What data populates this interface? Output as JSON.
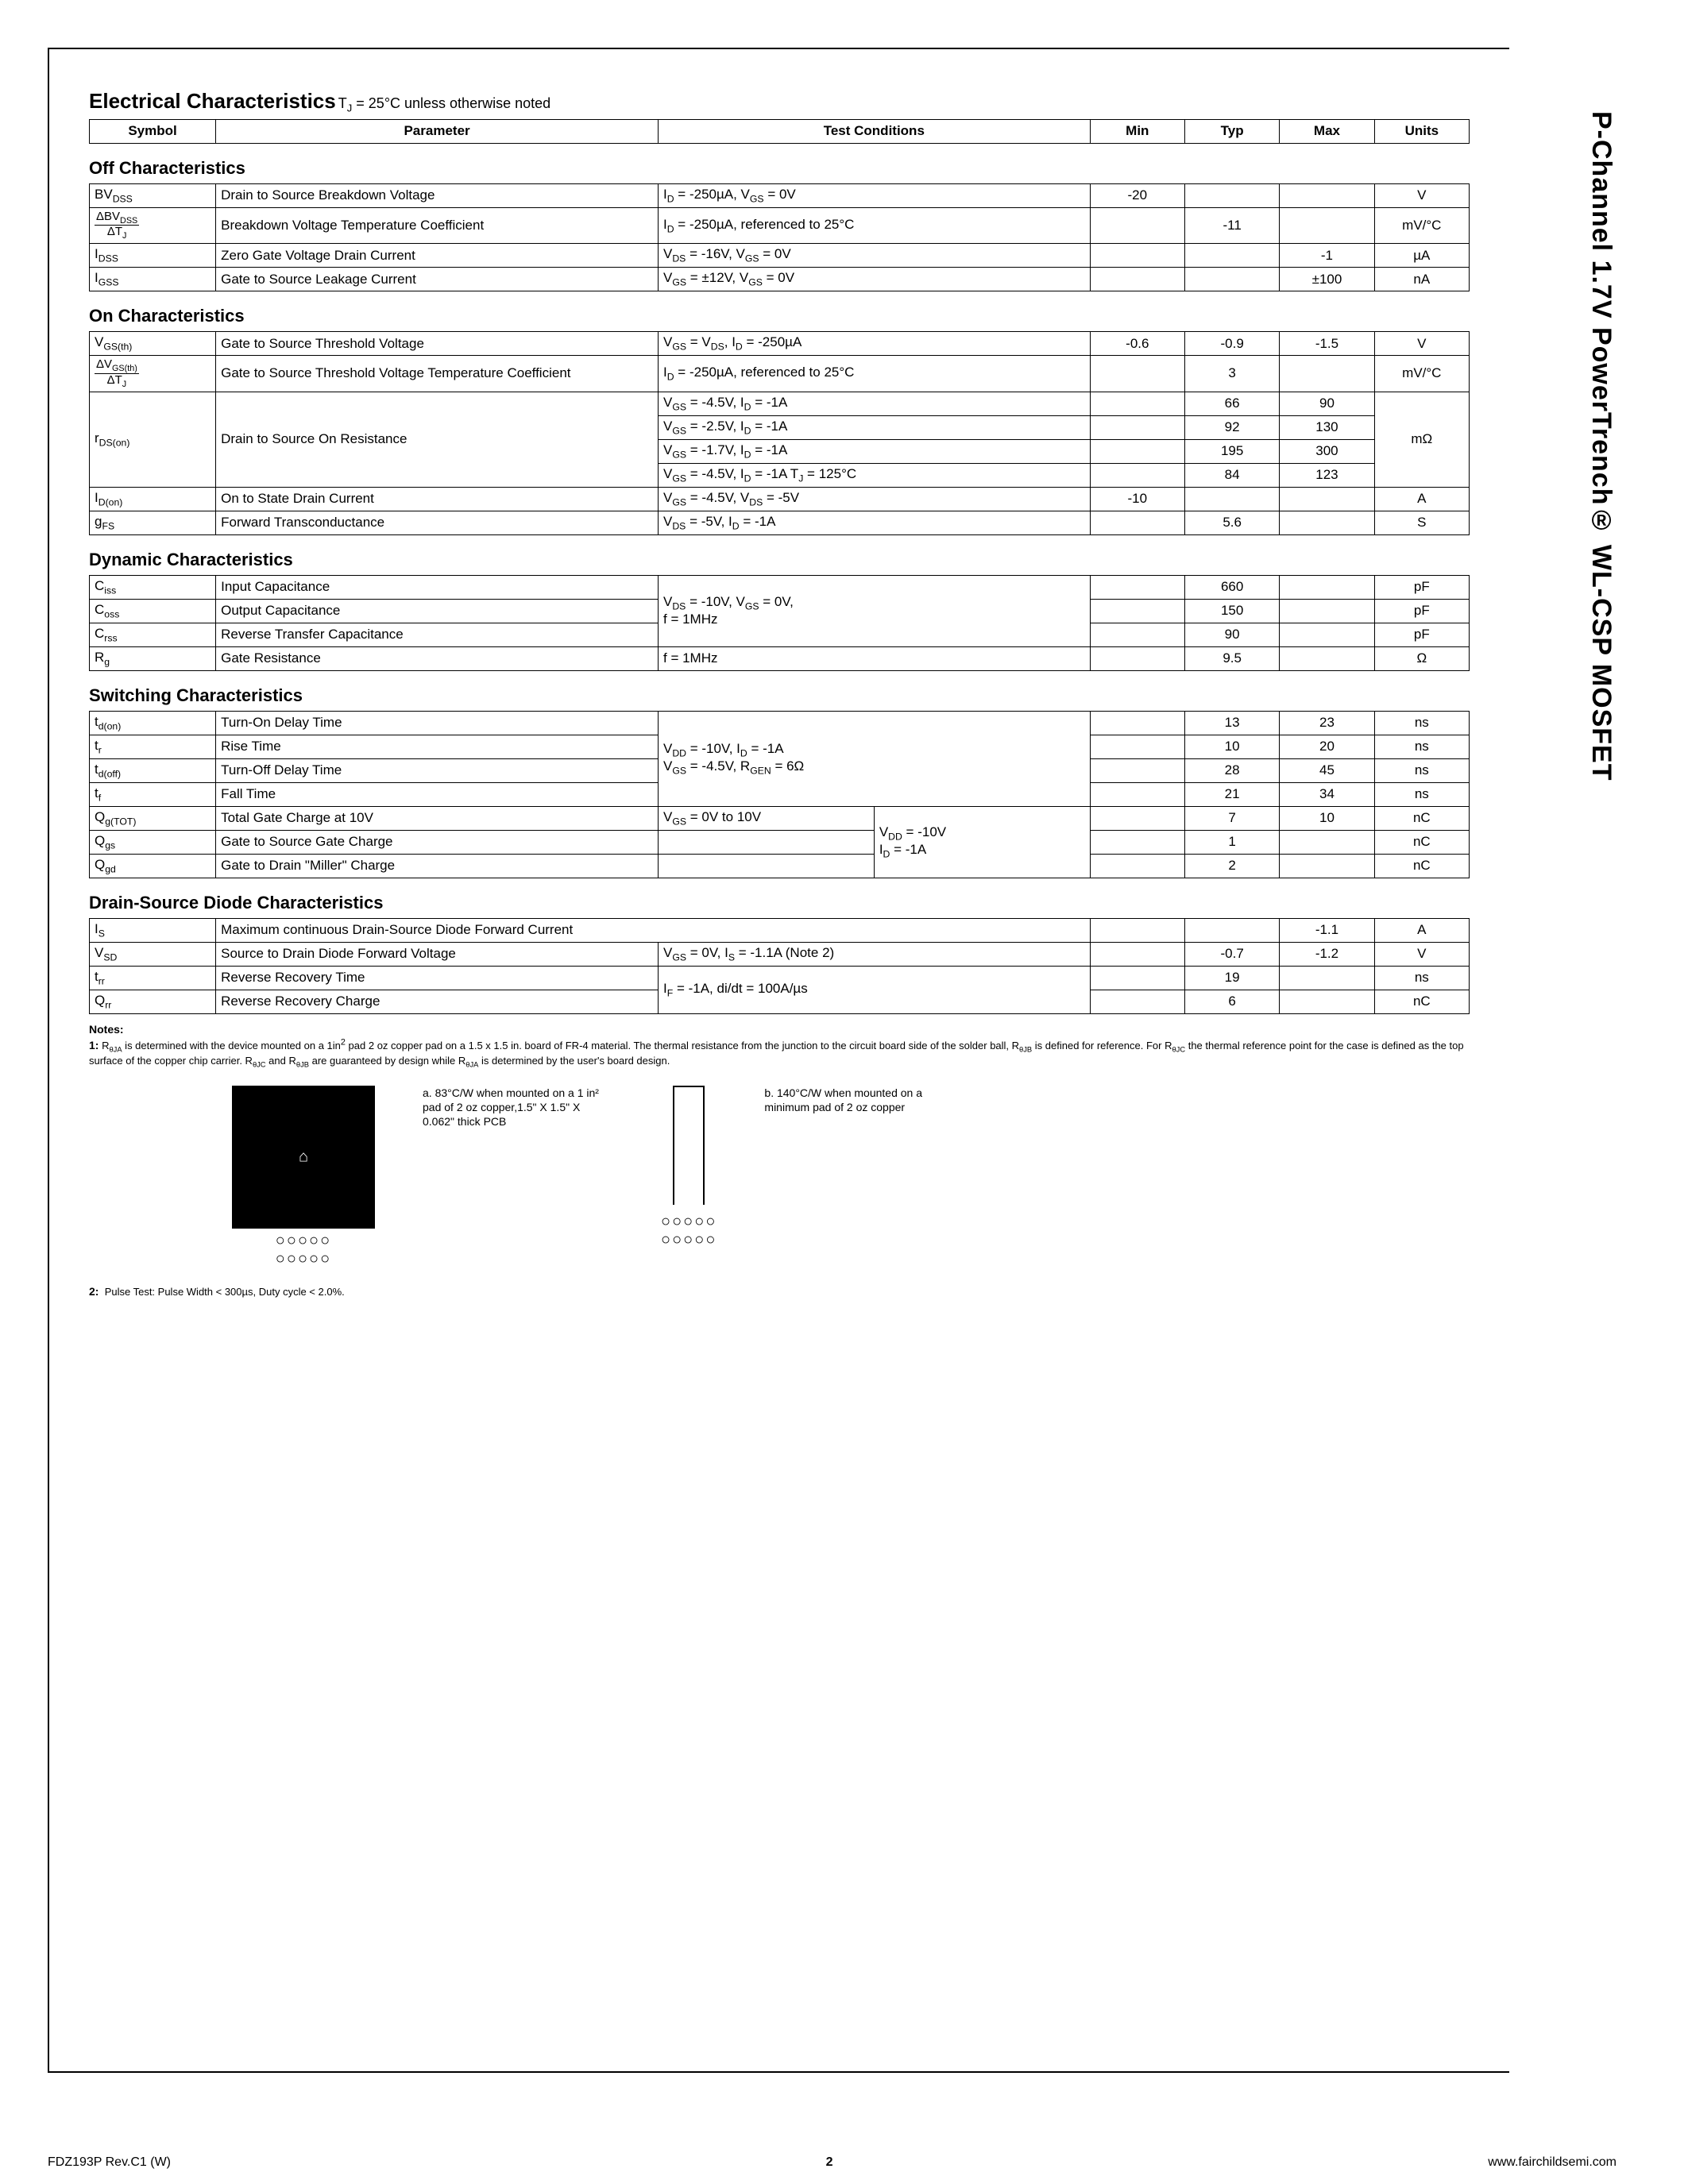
{
  "colors": {
    "border": "#000000",
    "bg": "#ffffff",
    "text": "#000000"
  },
  "typography": {
    "base_font": "Arial",
    "base_size_pt": 11,
    "title_size_pt": 18,
    "section_size_pt": 15,
    "side_size_pt": 24
  },
  "side_header": "P-Channel 1.7V  PowerTrench® WL-CSP MOSFET",
  "title": "Electrical Characteristics",
  "title_cond": " T",
  "title_cond_sub": "J",
  "title_cond_rest": " = 25°C unless otherwise noted",
  "headers": {
    "symbol": "Symbol",
    "param": "Parameter",
    "test": "Test Conditions",
    "min": "Min",
    "typ": "Typ",
    "max": "Max",
    "units": "Units"
  },
  "sections": {
    "off": {
      "title": "Off Characteristics"
    },
    "on": {
      "title": "On Characteristics"
    },
    "dyn": {
      "title": "Dynamic Characteristics"
    },
    "sw": {
      "title": "Switching Characteristics"
    },
    "ds": {
      "title": "Drain-Source Diode Characteristics"
    }
  },
  "off_rows": [
    {
      "sym_html": "BV<sub>DSS</sub>",
      "param": "Drain to Source Breakdown Voltage",
      "test_html": "I<sub>D</sub> = -250µA, V<sub>GS</sub> = 0V",
      "min": "-20",
      "typ": "",
      "max": "",
      "unit": "V"
    },
    {
      "sym_frac_top": "ΔBV<sub>DSS</sub>",
      "sym_frac_bot": "ΔT<sub>J</sub>",
      "param": "Breakdown Voltage Temperature Coefficient",
      "test_html": "I<sub>D</sub> = -250µA, referenced to 25°C",
      "min": "",
      "typ": "-11",
      "max": "",
      "unit": "mV/°C"
    },
    {
      "sym_html": "I<sub>DSS</sub>",
      "param": "Zero Gate Voltage Drain Current",
      "test_html": "V<sub>DS</sub> = -16V,  V<sub>GS</sub> = 0V",
      "min": "",
      "typ": "",
      "max": "-1",
      "unit": "µA"
    },
    {
      "sym_html": "I<sub>GSS</sub>",
      "param": "Gate to Source Leakage Current",
      "test_html": "V<sub>GS</sub> = ±12V, V<sub>GS</sub> = 0V",
      "min": "",
      "typ": "",
      "max": "±100",
      "unit": "nA"
    }
  ],
  "on_rows": [
    {
      "sym_html": "V<sub>GS(th)</sub>",
      "param": "Gate to Source Threshold Voltage",
      "test_html": "V<sub>GS</sub> = V<sub>DS</sub>,  I<sub>D</sub> = -250µA",
      "min": "-0.6",
      "typ": "-0.9",
      "max": "-1.5",
      "unit": "V"
    },
    {
      "sym_frac_top": "ΔV<sub>GS(th)</sub>",
      "sym_frac_bot": "ΔT<sub>J</sub>",
      "param": "Gate to Source Threshold Voltage Temperature Coefficient",
      "test_html": "I<sub>D</sub> = -250µA, referenced to 25°C",
      "min": "",
      "typ": "3",
      "max": "",
      "unit": "mV/°C"
    }
  ],
  "rds_label": "r<sub>DS(on)</sub>",
  "rds_param": "Drain to Source On Resistance",
  "rds_unit": "mΩ",
  "rds_rows": [
    {
      "test_html": "V<sub>GS</sub> = -4.5V,   I<sub>D</sub> = -1A",
      "min": "",
      "typ": "66",
      "max": "90"
    },
    {
      "test_html": "V<sub>GS</sub> = -2.5V,   I<sub>D</sub> = -1A",
      "min": "",
      "typ": "92",
      "max": "130"
    },
    {
      "test_html": "V<sub>GS</sub> = -1.7V,   I<sub>D</sub> = -1A",
      "min": "",
      "typ": "195",
      "max": "300"
    },
    {
      "test_html": "V<sub>GS</sub> = -4.5V,   I<sub>D</sub> = -1A T<sub>J</sub> = 125°C",
      "min": "",
      "typ": "84",
      "max": "123"
    }
  ],
  "on_tail": [
    {
      "sym_html": "I<sub>D(on)</sub>",
      "param": "On to State Drain Current",
      "test_html": "V<sub>GS</sub> = -4.5V,  V<sub>DS</sub> = -5V",
      "min": "-10",
      "typ": "",
      "max": "",
      "unit": "A"
    },
    {
      "sym_html": "g<sub>FS</sub>",
      "param": "Forward Transconductance",
      "test_html": "V<sub>DS</sub> = -5V,  I<sub>D</sub> = -1A",
      "min": "",
      "typ": "5.6",
      "max": "",
      "unit": "S"
    }
  ],
  "dyn_test_html": "V<sub>DS</sub> = -10V, V<sub>GS</sub> = 0V,<br>f = 1MHz",
  "dyn_rows": [
    {
      "sym_html": "C<sub>iss</sub>",
      "param": "Input Capacitance",
      "typ": "660",
      "unit": "pF"
    },
    {
      "sym_html": "C<sub>oss</sub>",
      "param": "Output Capacitance",
      "typ": "150",
      "unit": "pF"
    },
    {
      "sym_html": "C<sub>rss</sub>",
      "param": "Reverse Transfer Capacitance",
      "typ": "90",
      "unit": "pF"
    }
  ],
  "dyn_rg": {
    "sym_html": "R<sub>g</sub>",
    "param": "Gate Resistance",
    "test": "f = 1MHz",
    "typ": "9.5",
    "unit": "Ω"
  },
  "sw_cond_html": "V<sub>DD</sub> = -10V, I<sub>D</sub> = -1A<br>V<sub>GS</sub> = -4.5V, R<sub>GEN</sub> = 6Ω",
  "sw_rows": [
    {
      "sym_html": "t<sub>d(on)</sub>",
      "param": "Turn-On Delay Time",
      "typ": "13",
      "max": "23",
      "unit": "ns"
    },
    {
      "sym_html": "t<sub>r</sub>",
      "param": "Rise Time",
      "typ": "10",
      "max": "20",
      "unit": "ns"
    },
    {
      "sym_html": "t<sub>d(off)</sub>",
      "param": "Turn-Off Delay Time",
      "typ": "28",
      "max": "45",
      "unit": "ns"
    },
    {
      "sym_html": "t<sub>f</sub>",
      "param": "Fall Time",
      "typ": "21",
      "max": "34",
      "unit": "ns"
    }
  ],
  "sw_q_test1_html": "V<sub>GS</sub> = 0V to 10V",
  "sw_q_test2_html": "V<sub>DD</sub> = -10V<br>I<sub>D</sub> = -1A",
  "sw_q": [
    {
      "sym_html": "Q<sub>g(TOT)</sub>",
      "param": "Total Gate Charge at 10V",
      "typ": "7",
      "max": "10",
      "unit": "nC"
    },
    {
      "sym_html": "Q<sub>gs</sub>",
      "param": "Gate to Source Gate Charge",
      "typ": "1",
      "max": "",
      "unit": "nC"
    },
    {
      "sym_html": "Q<sub>gd</sub>",
      "param": "Gate to Drain \"Miller\" Charge",
      "typ": "2",
      "max": "",
      "unit": "nC"
    }
  ],
  "ds_rows": [
    {
      "sym_html": "I<sub>S</sub>",
      "param": "Maximum continuous Drain-Source Diode Forward Current",
      "test": "",
      "min": "",
      "typ": "",
      "max": "-1.1",
      "unit": "A",
      "span_test": true
    },
    {
      "sym_html": "V<sub>SD</sub>",
      "param": "Source to Drain Diode  Forward Voltage",
      "test_html": "V<sub>GS</sub> = 0V, I<sub>S</sub> = -1.1A      (Note 2)",
      "min": "",
      "typ": "-0.7",
      "max": "-1.2",
      "unit": "V"
    }
  ],
  "ds_rr_test_html": "I<sub>F</sub> = -1A, di/dt = 100A/µs",
  "ds_rr": [
    {
      "sym_html": "t<sub>rr</sub>",
      "param": "Reverse Recovery Time",
      "typ": "19",
      "unit": "ns"
    },
    {
      "sym_html": "Q<sub>rr</sub>",
      "param": "Reverse Recovery Charge",
      "typ": "6",
      "unit": "nC"
    }
  ],
  "notes_label": "Notes:",
  "note1_html": "<b>1:</b>  R<sub>θJA</sub> is determined with the device mounted on a 1in<sup>2</sup> pad 2 oz copper pad on a 1.5 x 1.5 in. board of FR-4 material. The thermal resistance from the junction to the circuit board side of the solder ball, R<sub>θJB</sub> is defined for reference. For R<sub>θJC</sub> the thermal reference point for the case is defined as the top surface of the copper chip carrier. R<sub>θJC</sub> and R<sub>θJB</sub> are guaranteed by design while R<sub>θJA</sub> is determined by the user's board design.",
  "fig_a_text": "a. 83°C/W when mounted  on a 1 in² pad of 2 oz  copper,1.5\" X 1.5\" X 0.062\" thick PCB",
  "fig_b_text": "b. 140°C/W when mounted on  a minimum pad of 2 oz copper",
  "note2": "2:  Pulse Test: Pulse Width < 300µs, Duty cycle < 2.0%.",
  "footer": {
    "left": "FDZ193P Rev.C1 (W)",
    "page": "2",
    "right": "www.fairchildsemi.com"
  }
}
